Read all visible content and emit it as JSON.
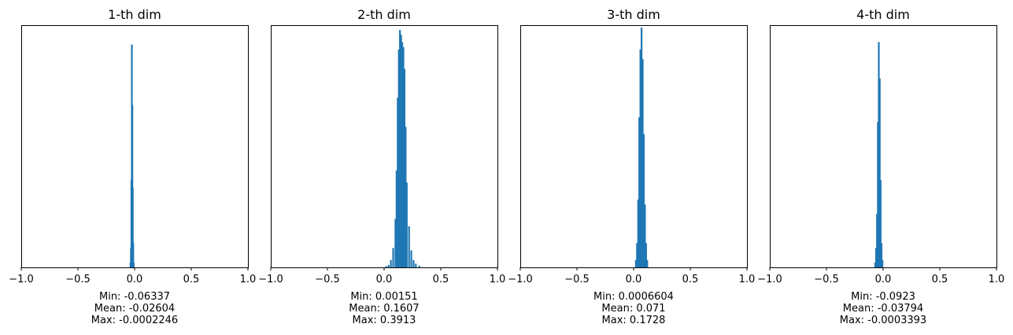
{
  "chart_data": [
    {
      "type": "histogram",
      "title": "1-th dim",
      "xlim": [
        -1.0,
        1.0
      ],
      "xticks": [
        "−1.0",
        "−0.5",
        "0.0",
        "0.5",
        "1.0"
      ],
      "yticks": [],
      "color": "#1f77b4",
      "stats": {
        "min": "Min: -0.06337",
        "mean": "Mean: -0.02604",
        "max": "Max: -0.0002246"
      },
      "bins": [
        {
          "x": -0.036,
          "h": 0.02
        },
        {
          "x": -0.032,
          "h": 0.08
        },
        {
          "x": -0.028,
          "h": 0.36
        },
        {
          "x": -0.024,
          "h": 0.92
        },
        {
          "x": -0.02,
          "h": 0.67
        },
        {
          "x": -0.016,
          "h": 0.33
        },
        {
          "x": -0.012,
          "h": 0.1
        },
        {
          "x": -0.008,
          "h": 0.02
        }
      ]
    },
    {
      "type": "histogram",
      "title": "2-th dim",
      "xlim": [
        -1.0,
        1.0
      ],
      "xticks": [
        "−1.0",
        "−0.5",
        "0.0",
        "0.5",
        "1.0"
      ],
      "yticks": [],
      "color": "#1f77b4",
      "stats": {
        "min": "Min: 0.00151",
        "mean": "Mean: 0.1607",
        "max": "Max: 0.3913"
      },
      "bins": [
        {
          "x": 0.02,
          "h": 0.005
        },
        {
          "x": 0.04,
          "h": 0.01
        },
        {
          "x": 0.06,
          "h": 0.03
        },
        {
          "x": 0.08,
          "h": 0.08
        },
        {
          "x": 0.1,
          "h": 0.2
        },
        {
          "x": 0.11,
          "h": 0.4
        },
        {
          "x": 0.12,
          "h": 0.7
        },
        {
          "x": 0.13,
          "h": 0.9
        },
        {
          "x": 0.14,
          "h": 0.98
        },
        {
          "x": 0.15,
          "h": 0.96
        },
        {
          "x": 0.16,
          "h": 0.93
        },
        {
          "x": 0.17,
          "h": 0.91
        },
        {
          "x": 0.18,
          "h": 0.82
        },
        {
          "x": 0.19,
          "h": 0.58
        },
        {
          "x": 0.2,
          "h": 0.35
        },
        {
          "x": 0.22,
          "h": 0.17
        },
        {
          "x": 0.24,
          "h": 0.07
        },
        {
          "x": 0.26,
          "h": 0.03
        },
        {
          "x": 0.28,
          "h": 0.015
        },
        {
          "x": 0.31,
          "h": 0.007
        }
      ]
    },
    {
      "type": "histogram",
      "title": "3-th dim",
      "xlim": [
        -1.0,
        1.0
      ],
      "xticks": [
        "−1.0",
        "−0.5",
        "0.0",
        "0.5",
        "1.0"
      ],
      "yticks": [],
      "color": "#1f77b4",
      "stats": {
        "min": "Min: 0.0006604",
        "mean": "Mean: 0.071",
        "max": "Max: 0.1728"
      },
      "bins": [
        {
          "x": 0.02,
          "h": 0.03
        },
        {
          "x": 0.03,
          "h": 0.1
        },
        {
          "x": 0.04,
          "h": 0.28
        },
        {
          "x": 0.05,
          "h": 0.62
        },
        {
          "x": 0.06,
          "h": 0.9
        },
        {
          "x": 0.07,
          "h": 0.99
        },
        {
          "x": 0.08,
          "h": 0.86
        },
        {
          "x": 0.09,
          "h": 0.55
        },
        {
          "x": 0.1,
          "h": 0.26
        },
        {
          "x": 0.11,
          "h": 0.1
        },
        {
          "x": 0.12,
          "h": 0.03
        }
      ]
    },
    {
      "type": "histogram",
      "title": "4-th dim",
      "xlim": [
        -1.0,
        1.0
      ],
      "xticks": [
        "−1.0",
        "−0.5",
        "0.0",
        "0.5",
        "1.0"
      ],
      "yticks": [],
      "color": "#1f77b4",
      "stats": {
        "min": "Min: -0.0923",
        "mean": "Mean: -0.03794",
        "max": "Max: -0.0003393"
      },
      "bins": [
        {
          "x": -0.07,
          "h": 0.02
        },
        {
          "x": -0.062,
          "h": 0.08
        },
        {
          "x": -0.054,
          "h": 0.22
        },
        {
          "x": -0.046,
          "h": 0.6
        },
        {
          "x": -0.038,
          "h": 0.93
        },
        {
          "x": -0.03,
          "h": 0.78
        },
        {
          "x": -0.022,
          "h": 0.36
        },
        {
          "x": -0.014,
          "h": 0.1
        },
        {
          "x": -0.006,
          "h": 0.03
        }
      ]
    }
  ]
}
